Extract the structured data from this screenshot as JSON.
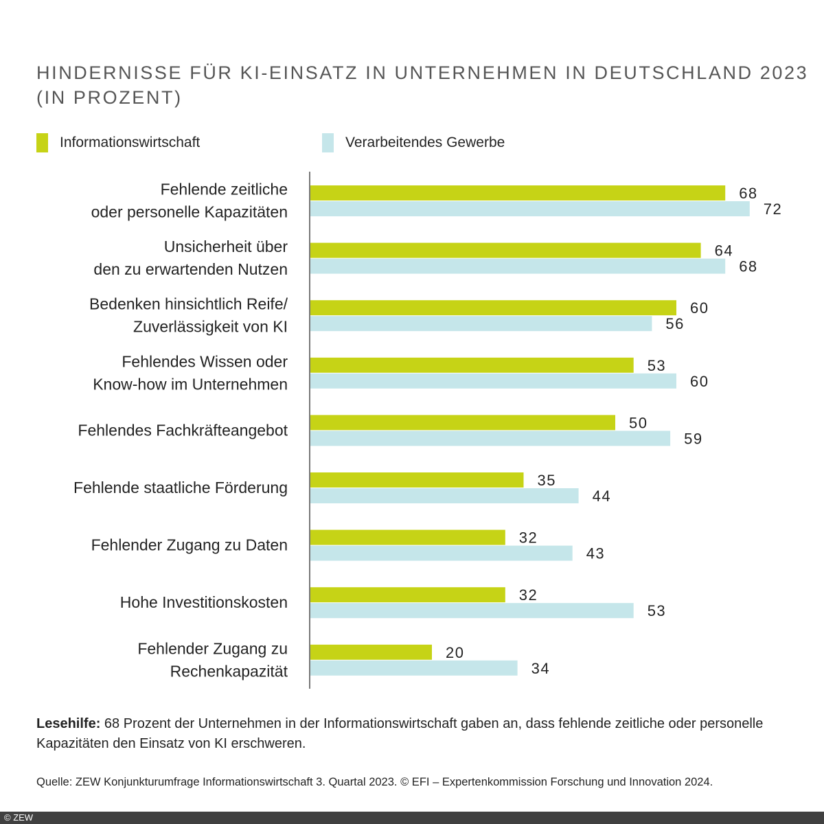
{
  "chart_data": {
    "type": "bar",
    "orientation": "horizontal",
    "title": "HINDERNISSE FÜR KI-EINSATZ IN UNTERNEHMEN IN DEUTSCHLAND 2023",
    "subtitle": "(IN PROZENT)",
    "categories": [
      [
        "Fehlende zeitliche",
        "oder personelle Kapazitäten"
      ],
      [
        "Unsicherheit über",
        "den zu erwartenden Nutzen"
      ],
      [
        "Bedenken hinsichtlich Reife/",
        "Zuverlässigkeit von KI"
      ],
      [
        "Fehlendes Wissen oder",
        "Know-how im Unternehmen"
      ],
      [
        "Fehlendes Fachkräfteangebot"
      ],
      [
        "Fehlende staatliche Förderung"
      ],
      [
        "Fehlender Zugang zu Daten"
      ],
      [
        "Hohe Investitionskosten"
      ],
      [
        "Fehlender Zugang zu",
        "Rechenkapazität"
      ]
    ],
    "series": [
      {
        "name": "Informationswirtschaft",
        "color": "#c6d316",
        "values": [
          68,
          64,
          60,
          53,
          50,
          35,
          32,
          32,
          20
        ]
      },
      {
        "name": "Verarbeitendes Gewerbe",
        "color": "#c5e6ea",
        "values": [
          72,
          68,
          56,
          60,
          59,
          44,
          43,
          53,
          34
        ]
      }
    ],
    "xlim": [
      0,
      75
    ],
    "grid": false,
    "data_labels": true,
    "legend_placement": "top-left"
  },
  "note": {
    "label": "Lesehilfe:",
    "text": " 68 Prozent der Unternehmen in der Informationswirtschaft gaben an, dass fehlende zeitliche oder personelle Kapazitäten den Einsatz von KI erschweren."
  },
  "source": "Quelle: ZEW Konjunkturumfrage Informationswirtschaft 3. Quartal 2023. © EFI – Expertenkommission Forschung und Innovation 2024.",
  "footer": "© ZEW"
}
